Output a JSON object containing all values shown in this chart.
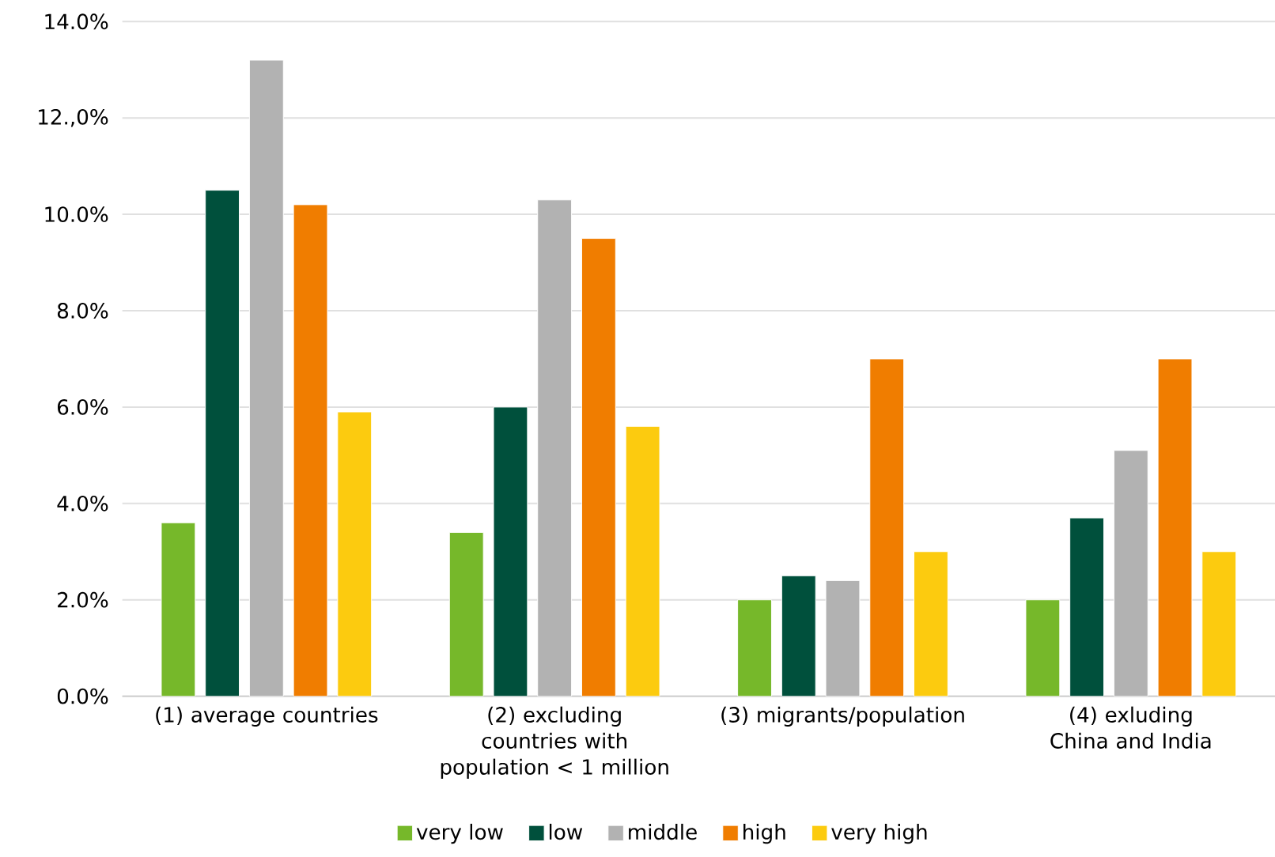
{
  "chart_data": {
    "type": "bar",
    "categories": [
      "(1) average countries",
      "(2) excluding countries with population < 1 million",
      "(3) migrants/population",
      "(4) exluding China and India"
    ],
    "series": [
      {
        "name": "very low",
        "color": "#76b82a",
        "values": [
          3.6,
          3.4,
          2.0,
          2.0
        ]
      },
      {
        "name": "low",
        "color": "#00503c",
        "values": [
          10.5,
          6.0,
          2.5,
          3.7
        ]
      },
      {
        "name": "middle",
        "color": "#b2b2b2",
        "values": [
          13.2,
          10.3,
          2.4,
          5.1
        ]
      },
      {
        "name": "high",
        "color": "#f07d00",
        "values": [
          10.2,
          9.5,
          7.0,
          7.0
        ]
      },
      {
        "name": "very high",
        "color": "#fccb0f",
        "values": [
          5.9,
          5.6,
          3.0,
          3.0
        ]
      }
    ],
    "ylim": [
      0,
      14
    ],
    "yticks": [
      {
        "value": 0,
        "label": "0.0%"
      },
      {
        "value": 2,
        "label": "2.0%"
      },
      {
        "value": 4,
        "label": "4.0%"
      },
      {
        "value": 6,
        "label": "6.0%"
      },
      {
        "value": 8,
        "label": "8.0%"
      },
      {
        "value": 10,
        "label": "10.0%"
      },
      {
        "value": 12,
        "label": "12.,0%"
      },
      {
        "value": 14,
        "label": "14.0%"
      }
    ],
    "grid": "y",
    "legend": "bottom"
  }
}
